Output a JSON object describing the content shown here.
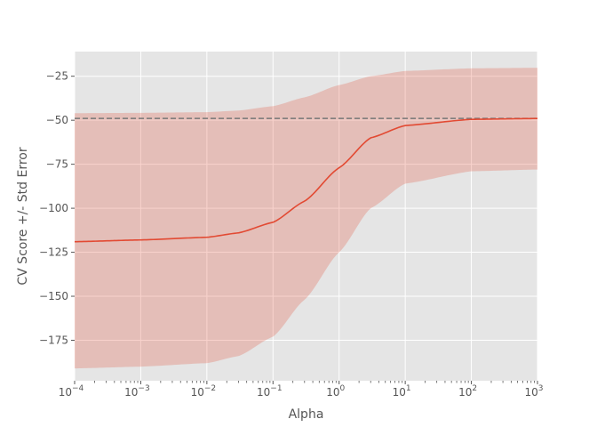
{
  "chart_data": {
    "type": "line",
    "title": "",
    "xlabel": "Alpha",
    "ylabel": "CV Score +/- Std Error",
    "x_scale": "log",
    "xlim": [
      0.0001,
      1000
    ],
    "ylim": [
      -198,
      -11
    ],
    "grid": true,
    "x_ticks": [
      0.0001,
      0.001,
      0.01,
      0.1,
      1,
      10,
      100,
      1000
    ],
    "x_tick_labels": [
      {
        "base": "10",
        "exp": "−4"
      },
      {
        "base": "10",
        "exp": "−3"
      },
      {
        "base": "10",
        "exp": "−2"
      },
      {
        "base": "10",
        "exp": "−1"
      },
      {
        "base": "10",
        "exp": "0"
      },
      {
        "base": "10",
        "exp": "1"
      },
      {
        "base": "10",
        "exp": "2"
      },
      {
        "base": "10",
        "exp": "3"
      }
    ],
    "y_ticks": [
      -25,
      -50,
      -75,
      -100,
      -125,
      -150,
      -175
    ],
    "y_tick_labels": [
      "−25",
      "−50",
      "−75",
      "−100",
      "−125",
      "−150",
      "−175"
    ],
    "reference_line": {
      "y": -49,
      "style": "dashed",
      "color": "#777777"
    },
    "colors": {
      "line": "#E24A33",
      "band": "#E24A33",
      "plot_background": "#E5E5E5",
      "grid": "#ffffff",
      "text": "#555555"
    },
    "series": [
      {
        "x": [
          0.0001,
          0.001,
          0.01,
          0.03,
          0.1,
          0.3,
          1,
          3,
          10,
          100,
          1000
        ],
        "mean": [
          -119,
          -118,
          -116.5,
          -114,
          -108,
          -96,
          -77,
          -60,
          -53,
          -49.5,
          -49
        ],
        "lower": [
          -191,
          -190,
          -188,
          -184,
          -173,
          -152,
          -125,
          -100,
          -86,
          -79,
          -78
        ],
        "upper": [
          -46,
          -45.8,
          -45.4,
          -44.5,
          -42,
          -37,
          -30,
          -25,
          -22,
          -20.5,
          -20.2
        ]
      }
    ]
  }
}
